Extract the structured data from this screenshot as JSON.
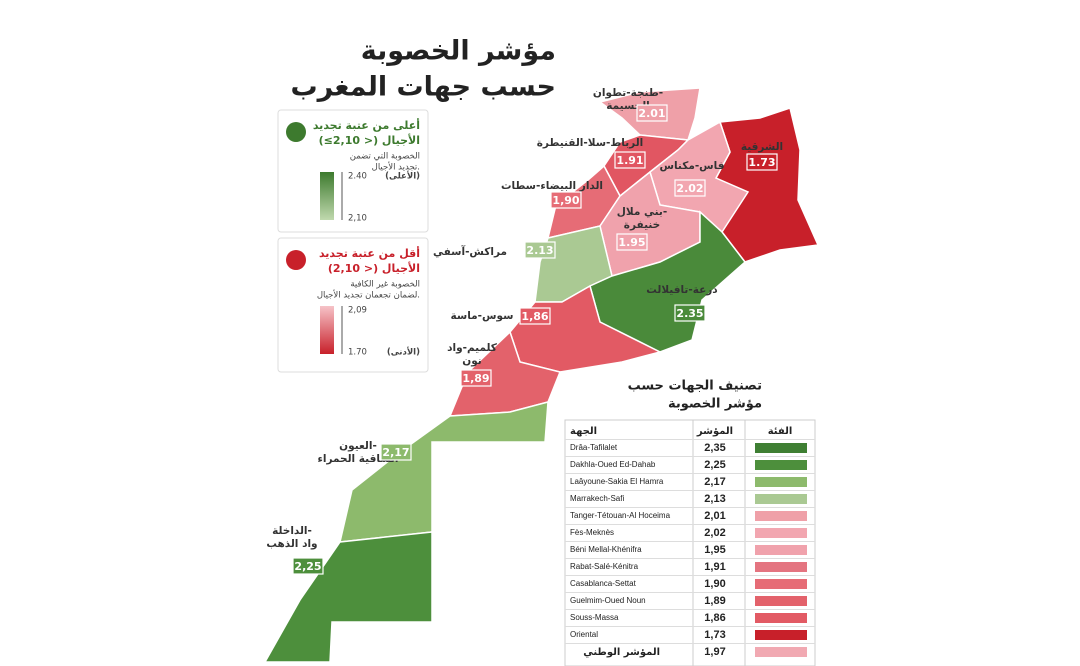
{
  "header": {
    "title_lines": [
      "مؤشر الخصوبة",
      "حسب جهات المغرب"
    ]
  },
  "legend": [
    {
      "title_lines": [
        "أعلى من عتبة تجديد",
        "الأجيال (< 2,10≥)"
      ],
      "note_lines": [
        "الخصوبة التي تضمن",
        "تجديد الأجيال."
      ],
      "top_label": "2.40",
      "bottom_label": "2,10",
      "extreme_label": "(الأعلى)",
      "color": "#3d7a2e",
      "color_light": "#c0d9ae"
    },
    {
      "title_lines": [
        "أقل من عتبة تجديد",
        "الأجيال (< 2,10)"
      ],
      "note_lines": [
        "الخصوبة غير الكافية",
        "لضمان تجعمان تجديد الأجيال."
      ],
      "top_label": "2,09",
      "bottom_label": "1.70",
      "extreme_label": "(الأدنى)",
      "color": "#c8202a",
      "color_light": "#f6c3c8"
    }
  ],
  "regions": [
    {
      "name_lines": [
        "طنجة-تطوان-",
        "الحسيمة"
      ],
      "value": "2.01",
      "color": "#efa0a8"
    },
    {
      "name_lines": [
        "الشرقية"
      ],
      "value": "1.73",
      "color": "#c8202a"
    },
    {
      "name_lines": [
        "الرباط-سلا-القنيطرة"
      ],
      "value": "1.91",
      "color": "#e15662"
    },
    {
      "name_lines": [
        "فاس-مكناس"
      ],
      "value": "2.02",
      "color": "#f2a6b0"
    },
    {
      "name_lines": [
        "الدار البيضاء-سطات"
      ],
      "value": "1,90",
      "color": "#e66c76"
    },
    {
      "name_lines": [
        "بني ملال-",
        "خنيفرة"
      ],
      "value": "1.95",
      "color": "#f0a2ac"
    },
    {
      "name_lines": [
        "مراكش-آسفي"
      ],
      "value": "2.13",
      "color": "#aac993"
    },
    {
      "name_lines": [
        "درعة-تافيلالت"
      ],
      "value": "2.35",
      "color": "#4a8a3a"
    },
    {
      "name_lines": [
        "سوس-ماسة"
      ],
      "value": "1,86",
      "color": "#e25a64"
    },
    {
      "name_lines": [
        "كلميم-واد",
        "نون"
      ],
      "value": "1,89",
      "color": "#e3626b"
    },
    {
      "name_lines": [
        "العيون-",
        "الساقية الحمراء"
      ],
      "value": "2,17",
      "color": "#8dba6c"
    },
    {
      "name_lines": [
        "الداخلة-",
        "واد الذهب"
      ],
      "value": "2,25",
      "color": "#4d8f3c"
    }
  ],
  "table": {
    "title_lines": [
      "تصنيف الجهات حسب",
      "مؤشر الخصوبة"
    ],
    "headers": [
      "الجهة",
      "المؤشر",
      "الفئة"
    ],
    "rows": [
      {
        "region": "Drâa-Tafilalet",
        "value": "2,35",
        "color": "#3f7f33"
      },
      {
        "region": "Dakhla-Oued Ed-Dahab",
        "value": "2,25",
        "color": "#4d8f3c"
      },
      {
        "region": "Laâyoune-Sakia El Hamra",
        "value": "2,17",
        "color": "#8dba6c"
      },
      {
        "region": "Marrakech-Safi",
        "value": "2,13",
        "color": "#aac993"
      },
      {
        "region": "Tanger-Tétouan-Al Hoceima",
        "value": "2,01",
        "color": "#efa0a8"
      },
      {
        "region": "Fès-Meknès",
        "value": "2,02",
        "color": "#f2a6b0"
      },
      {
        "region": "Béni Mellal-Khénifra",
        "value": "1,95",
        "color": "#f0a2ac"
      },
      {
        "region": "Rabat-Salé-Kénitra",
        "value": "1,91",
        "color": "#e47480"
      },
      {
        "region": "Casablanca-Settat",
        "value": "1,90",
        "color": "#e66c76"
      },
      {
        "region": "Guelmim-Oued Noun",
        "value": "1,89",
        "color": "#e3626b"
      },
      {
        "region": "Souss-Massa",
        "value": "1,86",
        "color": "#e25a64"
      },
      {
        "region": "Oriental",
        "value": "1,73",
        "color": "#c8202a"
      },
      {
        "region": "المؤشر الوطني",
        "value": "1,97",
        "color": "#f1a9b2"
      }
    ]
  }
}
